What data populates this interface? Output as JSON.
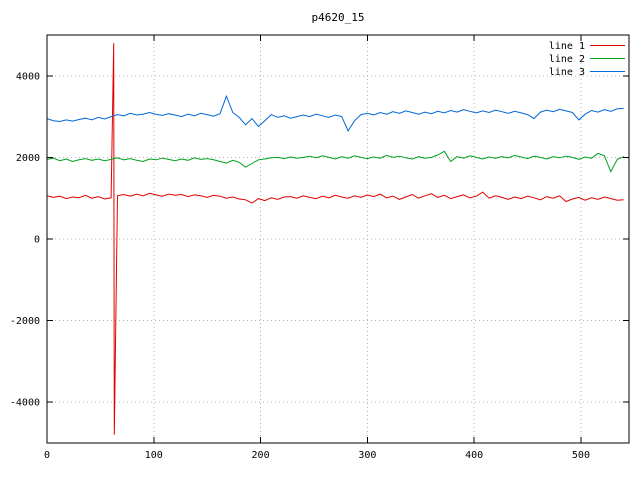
{
  "chart_data": {
    "type": "line",
    "title": "p4620_15",
    "xlabel": "",
    "ylabel": "",
    "xlim": [
      0,
      545
    ],
    "ylim": [
      -5000,
      5000
    ],
    "x_ticks": [
      0,
      100,
      200,
      300,
      400,
      500
    ],
    "y_ticks": [
      -4000,
      -2000,
      0,
      2000,
      4000
    ],
    "grid": true,
    "legend_position": "top-right-inside",
    "x_start": 0,
    "x_step": 6,
    "colors": {
      "frame": "#000000",
      "grid": "#b4b4b4",
      "text": "#000000"
    },
    "series": [
      {
        "name": "line 1",
        "color": "#e00000",
        "spike": {
          "x": 63,
          "top": 4800,
          "bottom": -4800
        },
        "values": [
          1060,
          1020,
          1050,
          990,
          1030,
          1010,
          1070,
          1000,
          1040,
          980,
          1010,
          1060,
          1090,
          1050,
          1100,
          1060,
          1120,
          1080,
          1050,
          1100,
          1070,
          1090,
          1040,
          1080,
          1060,
          1020,
          1070,
          1050,
          1000,
          1030,
          980,
          960,
          880,
          990,
          940,
          1010,
          970,
          1030,
          1040,
          1000,
          1060,
          1020,
          990,
          1050,
          1010,
          1070,
          1030,
          1000,
          1060,
          1020,
          1080,
          1040,
          1100,
          1010,
          1050,
          970,
          1030,
          1090,
          1000,
          1060,
          1110,
          1020,
          1070,
          990,
          1040,
          1080,
          1010,
          1050,
          1150,
          1000,
          1060,
          1020,
          970,
          1030,
          990,
          1050,
          1010,
          960,
          1040,
          1000,
          1060,
          920,
          980,
          1020,
          950,
          1010,
          970,
          1030,
          990,
          950,
          960
        ]
      },
      {
        "name": "line 2",
        "color": "#00a020",
        "values": [
          1950,
          1980,
          1920,
          1960,
          1900,
          1940,
          1970,
          1930,
          1960,
          1920,
          1950,
          1990,
          1940,
          1970,
          1930,
          1900,
          1960,
          1940,
          1980,
          1950,
          1920,
          1960,
          1930,
          1990,
          1950,
          1970,
          1940,
          1900,
          1860,
          1930,
          1880,
          1760,
          1850,
          1940,
          1960,
          1990,
          2000,
          1970,
          2010,
          1980,
          2000,
          2030,
          1990,
          2040,
          2000,
          1960,
          2020,
          1980,
          2040,
          2000,
          1970,
          2010,
          1980,
          2050,
          2000,
          2030,
          1990,
          1960,
          2020,
          1980,
          2000,
          2060,
          2150,
          1900,
          2020,
          1980,
          2040,
          2000,
          1960,
          2010,
          1980,
          2020,
          1990,
          2050,
          2010,
          1970,
          2030,
          2000,
          1960,
          2020,
          1990,
          2030,
          2000,
          1950,
          2010,
          1980,
          2100,
          2040,
          1650,
          1950,
          2020
        ]
      },
      {
        "name": "line 3",
        "color": "#0068d8",
        "values": [
          2950,
          2900,
          2880,
          2920,
          2890,
          2930,
          2960,
          2920,
          2980,
          2940,
          3000,
          3050,
          3020,
          3080,
          3040,
          3060,
          3100,
          3060,
          3030,
          3070,
          3040,
          3000,
          3060,
          3020,
          3080,
          3050,
          3010,
          3070,
          3500,
          3100,
          2980,
          2800,
          2950,
          2760,
          2900,
          3050,
          2980,
          3020,
          2960,
          3000,
          3040,
          3000,
          3060,
          3020,
          2980,
          3040,
          3000,
          2650,
          2900,
          3050,
          3080,
          3040,
          3100,
          3060,
          3120,
          3080,
          3140,
          3100,
          3060,
          3110,
          3070,
          3130,
          3090,
          3150,
          3110,
          3170,
          3130,
          3090,
          3140,
          3100,
          3160,
          3120,
          3080,
          3130,
          3090,
          3050,
          2950,
          3110,
          3160,
          3120,
          3180,
          3140,
          3100,
          2920,
          3060,
          3150,
          3110,
          3170,
          3130,
          3190,
          3200
        ]
      }
    ]
  }
}
